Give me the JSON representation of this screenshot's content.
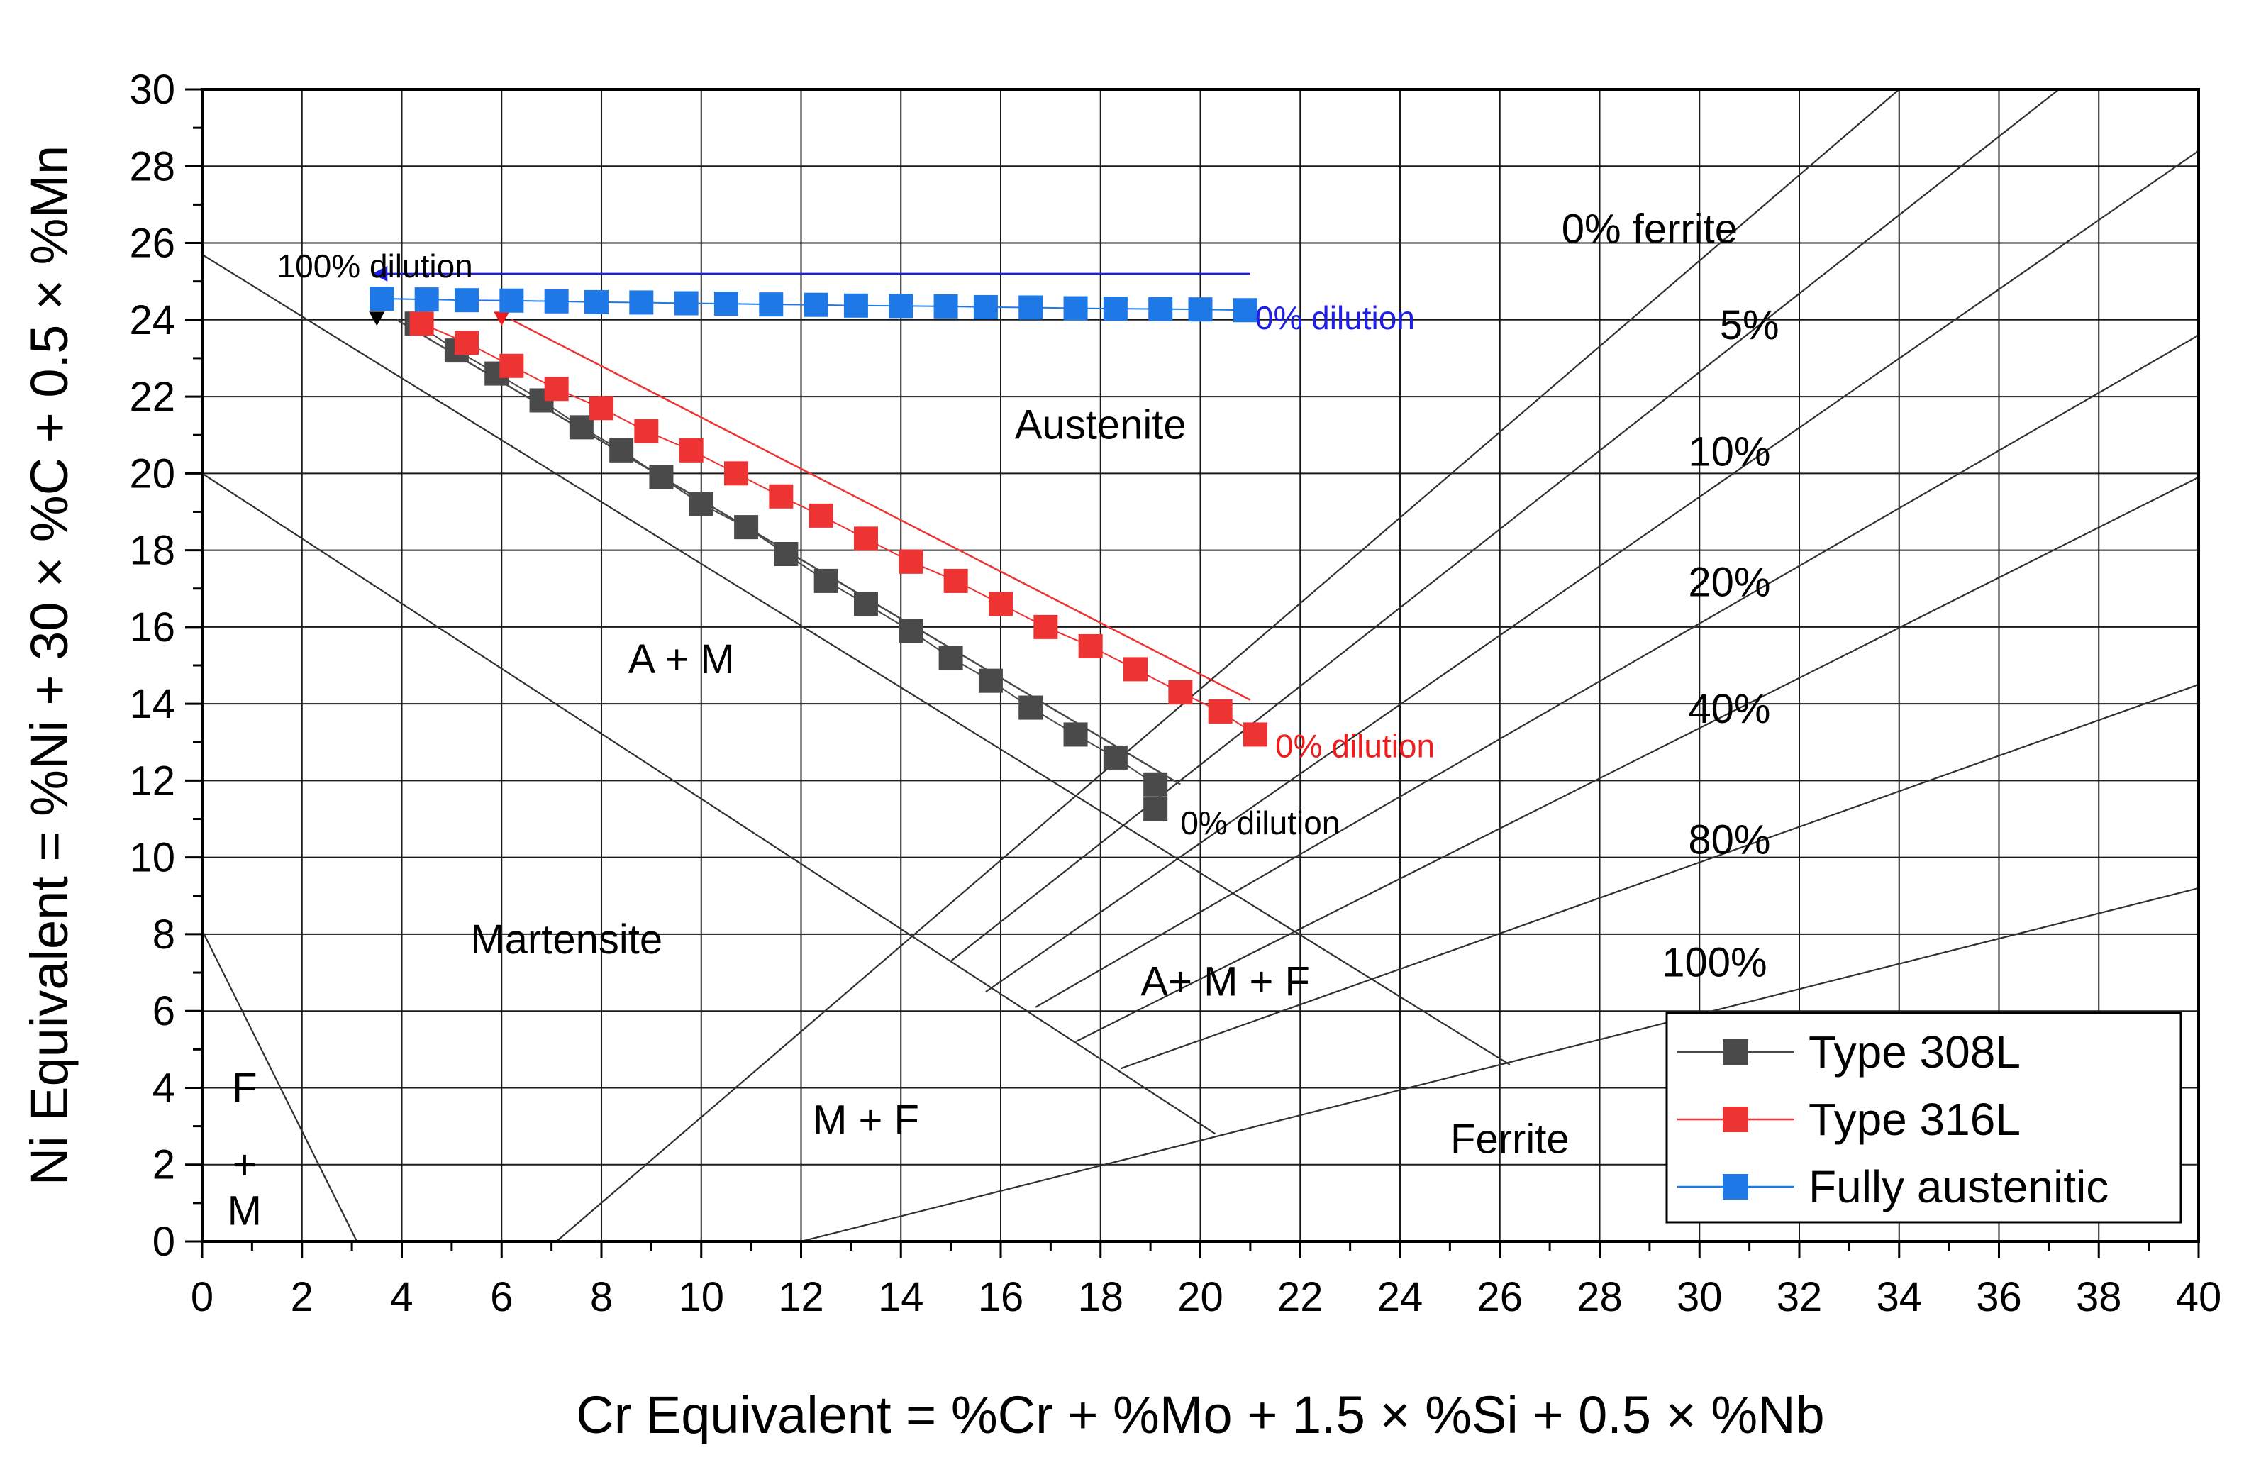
{
  "chart_data": {
    "type": "scatter",
    "title": "",
    "xlabel": "Cr Equivalent = %Cr + %Mo + 1.5 × %Si + 0.5 × %Nb",
    "ylabel": "Ni Equivalent = %Ni + 30 × %C + 0.5 × %Mn",
    "xlim": [
      0,
      40
    ],
    "ylim": [
      0,
      30
    ],
    "grid": true,
    "legend_position": "bottom-right",
    "x_ticks": [
      "0",
      "2",
      "4",
      "6",
      "8",
      "10",
      "12",
      "14",
      "16",
      "18",
      "20",
      "22",
      "24",
      "26",
      "28",
      "30",
      "32",
      "34",
      "36",
      "38",
      "40"
    ],
    "y_ticks": [
      "0",
      "2",
      "4",
      "6",
      "8",
      "10",
      "12",
      "14",
      "16",
      "18",
      "20",
      "22",
      "24",
      "26",
      "28",
      "30"
    ],
    "series": [
      {
        "name": "Type 308L",
        "color": "#4a4a4a",
        "x": [
          4.3,
          5.1,
          5.9,
          6.8,
          7.6,
          8.4,
          9.2,
          10.0,
          10.9,
          11.7,
          12.5,
          13.3,
          14.2,
          15.0,
          15.8,
          16.6,
          17.5,
          18.3,
          19.1
        ],
        "y": [
          23.9,
          23.2,
          22.6,
          21.9,
          21.2,
          20.6,
          19.9,
          19.2,
          18.6,
          17.9,
          17.2,
          16.6,
          15.9,
          15.2,
          14.6,
          13.9,
          13.2,
          12.6,
          11.9
        ],
        "extra_points": [
          {
            "x": 19.1,
            "y": 11.25
          }
        ]
      },
      {
        "name": "Type 316L",
        "color": "#ee3333",
        "x": [
          4.4,
          5.3,
          6.2,
          7.1,
          8.0,
          8.9,
          9.8,
          10.7,
          11.6,
          12.4,
          13.3,
          14.2,
          15.1,
          16.0,
          16.9,
          17.8,
          18.7,
          19.6,
          20.4,
          21.1
        ],
        "y": [
          23.9,
          23.4,
          22.8,
          22.2,
          21.7,
          21.1,
          20.6,
          20.0,
          19.4,
          18.9,
          18.3,
          17.7,
          17.2,
          16.6,
          16.0,
          15.5,
          14.9,
          14.3,
          13.8,
          13.2
        ]
      },
      {
        "name": "Fully austenitic",
        "color": "#1e78e6",
        "x": [
          3.6,
          4.5,
          5.3,
          6.2,
          7.1,
          7.9,
          8.8,
          9.7,
          10.5,
          11.4,
          12.3,
          13.1,
          14.0,
          14.9,
          15.7,
          16.6,
          17.5,
          18.3,
          19.2,
          20.0,
          20.9
        ],
        "y": [
          24.55,
          24.53,
          24.51,
          24.5,
          24.48,
          24.46,
          24.45,
          24.43,
          24.42,
          24.4,
          24.39,
          24.37,
          24.36,
          24.35,
          24.33,
          24.32,
          24.3,
          24.29,
          24.28,
          24.27,
          24.25
        ]
      }
    ],
    "region_labels": [
      {
        "text": "Austenite",
        "x": 18.0,
        "y": 20.9
      },
      {
        "text": "A + M",
        "x": 9.6,
        "y": 14.8
      },
      {
        "text": "Martensite",
        "x": 7.3,
        "y": 7.5
      },
      {
        "text": "A+ M + F",
        "x": 20.5,
        "y": 6.4
      },
      {
        "text": "M + F",
        "x": 13.3,
        "y": 2.8
      },
      {
        "text": "Ferrite",
        "x": 26.2,
        "y": 2.3
      },
      {
        "text": "0% ferrite",
        "x": 29.0,
        "y": 26.0
      },
      {
        "text": "5%",
        "x": 31.0,
        "y": 23.5
      },
      {
        "text": "10%",
        "x": 30.6,
        "y": 20.2
      },
      {
        "text": "20%",
        "x": 30.6,
        "y": 16.8
      },
      {
        "text": "40%",
        "x": 30.6,
        "y": 13.5
      },
      {
        "text": "80%",
        "x": 30.6,
        "y": 10.1
      },
      {
        "text": "100%",
        "x": 30.3,
        "y": 6.9
      }
    ],
    "fm_label": [
      "F",
      "+",
      "M"
    ],
    "annotations": [
      {
        "text": "100% dilution",
        "color": "#000000",
        "x": 1.5,
        "y": 25.4
      },
      {
        "text": "0% dilution",
        "color": "#1e1ee6",
        "x": 21.1,
        "y": 24.05
      },
      {
        "text": "0% dilution",
        "color": "#ee1c1c",
        "x": 21.5,
        "y": 12.9
      },
      {
        "text": "0% dilution",
        "color": "#000000",
        "x": 19.6,
        "y": 10.9
      }
    ],
    "boundary_lines": [
      {
        "x1": 0,
        "y1": 25.7,
        "x2": 26.2,
        "y2": 4.6
      },
      {
        "x1": 0,
        "y1": 20.0,
        "x2": 20.3,
        "y2": 2.8
      },
      {
        "x1": 0,
        "y1": 8.1,
        "x2": 3.1,
        "y2": 0
      },
      {
        "x1": 7.1,
        "y1": 0,
        "x2": 34.0,
        "y2": 30.0
      },
      {
        "x1": 15.0,
        "y1": 7.3,
        "x2": 37.2,
        "y2": 30.0
      },
      {
        "x1": 15.7,
        "y1": 6.5,
        "x2": 40.0,
        "y2": 28.4
      },
      {
        "x1": 16.7,
        "y1": 6.1,
        "x2": 40.0,
        "y2": 23.6
      },
      {
        "x1": 17.5,
        "y1": 5.2,
        "x2": 40.0,
        "y2": 19.9
      },
      {
        "x1": 18.4,
        "y1": 4.5,
        "x2": 40.0,
        "y2": 14.5
      },
      {
        "x1": 12.0,
        "y1": 0,
        "x2": 40.0,
        "y2": 9.2
      }
    ],
    "trend_lines": [
      {
        "color": "#4a4a4a",
        "x1": 3.9,
        "y1": 24.0,
        "x2": 19.6,
        "y2": 11.9
      },
      {
        "color": "#ee3333",
        "x1": 6.2,
        "y1": 24.0,
        "x2": 21.0,
        "y2": 14.1
      },
      {
        "color": "#1e1ee6",
        "x1": 3.4,
        "y1": 25.2,
        "x2": 21.0,
        "y2": 25.2
      }
    ]
  }
}
